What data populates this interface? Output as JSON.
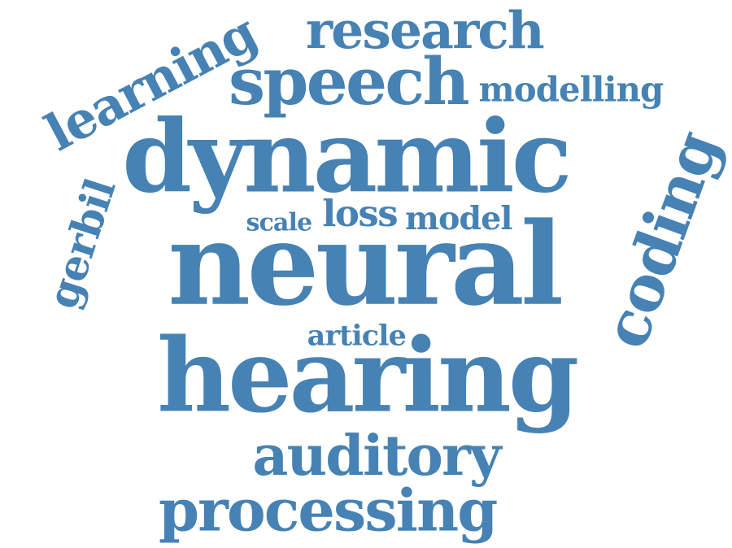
{
  "word_cloud": {
    "color": "#4682b4",
    "background": "#ffffff",
    "words": {
      "neural": "neural",
      "hearing": "hearing",
      "dynamic": "dynamic",
      "speech": "speech",
      "coding": "coding",
      "learning": "learning",
      "processing": "processing",
      "auditory": "auditory",
      "research": "research",
      "loss": "loss",
      "gerbil": "gerbil",
      "modelling": "modelling",
      "model": "model",
      "article": "article",
      "scale": "scale"
    }
  }
}
